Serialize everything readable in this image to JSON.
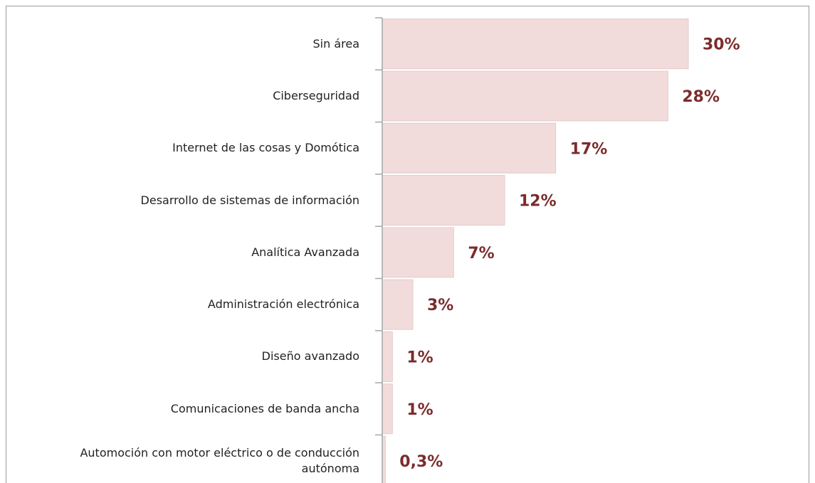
{
  "chart_data": {
    "type": "bar",
    "orientation": "horizontal",
    "categories": [
      "Sin área",
      "Ciberseguridad",
      "Internet de las cosas y Domótica",
      "Desarrollo de sistemas de información",
      "Analítica Avanzada",
      "Administración electrónica",
      "Diseño avanzado",
      "Comunicaciones de banda ancha",
      "Automoción con motor eléctrico o de conducción autónoma"
    ],
    "values": [
      30,
      28,
      17,
      12,
      7,
      3,
      1,
      1,
      0.3
    ],
    "value_labels": [
      "30%",
      "28%",
      "17%",
      "12%",
      "7%",
      "3%",
      "1%",
      "1%",
      "0,3%"
    ],
    "color": "#f2dcdb",
    "label_color": "#7b2c2c"
  }
}
